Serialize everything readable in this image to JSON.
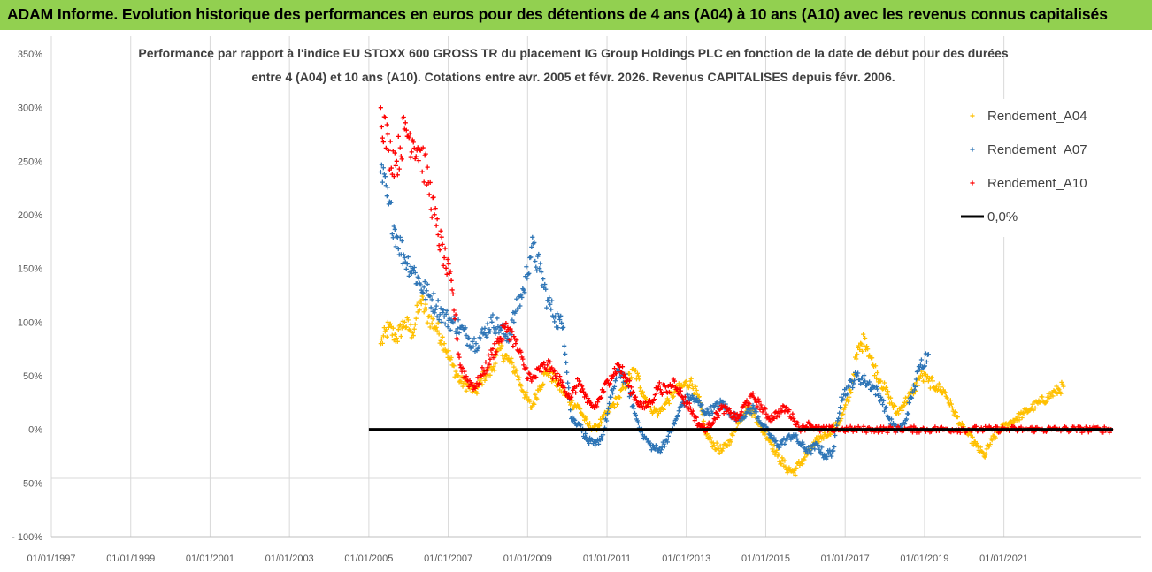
{
  "banner": {
    "text": "ADAM Informe. Evolution historique des performances en euros pour des détentions de 4 ans (A04) à 10 ans (A10) avec les revenus connus capitalisés"
  },
  "chart_data": {
    "type": "scatter",
    "title_lines": [
      "Performance par rapport à l'indice EU STOXX 600 GROSS TR  du placement IG Group Holdings PLC en fonction de la date de début pour des durées",
      "entre 4 (A04) et 10 ans (A10). Cotations entre avr. 2005 et févr. 2026. Revenus CAPITALISES depuis févr. 2006."
    ],
    "xlabel": "",
    "ylabel": "",
    "xlim": [
      1997.0,
      2023.75
    ],
    "ylim": [
      -100,
      350
    ],
    "y_ticks": [
      350,
      300,
      250,
      200,
      150,
      100,
      50,
      0,
      -50,
      -100
    ],
    "y_tick_labels": [
      "350%",
      "300%",
      "250%",
      "200%",
      "150%",
      "100%",
      "50%",
      "0%",
      "-50%",
      "- 100%"
    ],
    "x_ticks": [
      1997,
      1999,
      2001,
      2003,
      2005,
      2007,
      2009,
      2011,
      2013,
      2015,
      2017,
      2019,
      2021
    ],
    "x_tick_labels": [
      "01/01/1997",
      "01/01/1999",
      "01/01/2001",
      "01/01/2003",
      "01/01/2005",
      "01/01/2007",
      "01/01/2009",
      "01/01/2011",
      "01/01/2013",
      "01/01/2015",
      "01/01/2017",
      "01/01/2019",
      "01/01/2021"
    ],
    "series": [
      {
        "name": "Rendement_A04",
        "color": "#ffc000",
        "marker": "plus",
        "x": [
          2005.3,
          2005.5,
          2005.7,
          2005.9,
          2006.1,
          2006.3,
          2006.5,
          2006.7,
          2006.9,
          2007.1,
          2007.3,
          2007.5,
          2007.7,
          2007.9,
          2008.1,
          2008.3,
          2008.5,
          2008.7,
          2008.9,
          2009.1,
          2009.3,
          2009.5,
          2009.7,
          2009.9,
          2010.1,
          2010.3,
          2010.5,
          2010.7,
          2010.9,
          2011.1,
          2011.3,
          2011.5,
          2011.7,
          2011.9,
          2012.1,
          2012.3,
          2012.5,
          2012.7,
          2012.9,
          2013.1,
          2013.3,
          2013.5,
          2013.7,
          2013.9,
          2014.1,
          2014.3,
          2014.5,
          2014.7,
          2014.9,
          2015.1,
          2015.3,
          2015.5,
          2015.7,
          2015.9,
          2016.1,
          2016.3,
          2016.5,
          2016.7,
          2016.9,
          2017.1,
          2017.3,
          2017.5,
          2017.7,
          2017.9,
          2018.1,
          2018.3,
          2018.5,
          2018.7,
          2018.9,
          2019.1,
          2019.3,
          2019.5,
          2019.7,
          2019.9,
          2020.1,
          2020.3,
          2020.5,
          2020.7,
          2020.9,
          2021.1,
          2021.3,
          2021.5,
          2021.7,
          2021.9,
          2022.1,
          2022.3,
          2022.5
        ],
        "y": [
          80,
          95,
          85,
          100,
          90,
          120,
          105,
          95,
          80,
          60,
          45,
          40,
          35,
          50,
          55,
          75,
          65,
          55,
          35,
          20,
          40,
          55,
          45,
          35,
          25,
          20,
          5,
          0,
          10,
          20,
          30,
          45,
          55,
          35,
          20,
          15,
          25,
          35,
          40,
          45,
          30,
          -5,
          -15,
          -20,
          -10,
          5,
          20,
          15,
          0,
          -10,
          -25,
          -35,
          -40,
          -30,
          -20,
          -10,
          -5,
          0,
          10,
          30,
          70,
          85,
          60,
          45,
          30,
          15,
          25,
          35,
          50,
          45,
          40,
          35,
          20,
          5,
          -5,
          -15,
          -25,
          -10,
          0,
          5,
          10,
          15,
          20,
          25,
          30,
          35,
          40
        ]
      },
      {
        "name": "Rendement_A07",
        "color": "#2e75b6",
        "marker": "plus",
        "x": [
          2005.3,
          2005.5,
          2005.7,
          2005.9,
          2006.1,
          2006.3,
          2006.5,
          2006.7,
          2006.9,
          2007.1,
          2007.3,
          2007.5,
          2007.7,
          2007.9,
          2008.1,
          2008.3,
          2008.5,
          2008.7,
          2008.9,
          2009.1,
          2009.3,
          2009.5,
          2009.7,
          2009.9,
          2010.1,
          2010.3,
          2010.5,
          2010.7,
          2010.9,
          2011.1,
          2011.3,
          2011.5,
          2011.7,
          2011.9,
          2012.1,
          2012.3,
          2012.5,
          2012.7,
          2012.9,
          2013.1,
          2013.3,
          2013.5,
          2013.7,
          2013.9,
          2014.1,
          2014.3,
          2014.5,
          2014.7,
          2014.9,
          2015.1,
          2015.3,
          2015.5,
          2015.7,
          2015.9,
          2016.1,
          2016.3,
          2016.5,
          2016.7,
          2016.9,
          2017.1,
          2017.3,
          2017.5,
          2017.7,
          2017.9,
          2018.1,
          2018.3,
          2018.5,
          2018.7,
          2018.9,
          2019.1
        ],
        "y": [
          240,
          210,
          180,
          160,
          150,
          135,
          125,
          115,
          105,
          100,
          95,
          85,
          80,
          90,
          100,
          95,
          85,
          110,
          130,
          170,
          150,
          120,
          105,
          95,
          10,
          5,
          -10,
          -15,
          -5,
          30,
          55,
          45,
          15,
          -5,
          -15,
          -20,
          -10,
          5,
          25,
          30,
          25,
          15,
          20,
          25,
          15,
          10,
          15,
          20,
          5,
          -5,
          -15,
          -10,
          -5,
          -15,
          -20,
          -15,
          -25,
          -20,
          30,
          40,
          50,
          45,
          40,
          30,
          10,
          0,
          5,
          35,
          60,
          70
        ]
      },
      {
        "name": "Rendement_A10",
        "color": "#ff0000",
        "marker": "plus",
        "x": [
          2005.3,
          2005.5,
          2005.7,
          2005.9,
          2006.1,
          2006.3,
          2006.5,
          2006.7,
          2006.9,
          2007.1,
          2007.3,
          2007.5,
          2007.7,
          2007.9,
          2008.1,
          2008.3,
          2008.5,
          2008.7,
          2008.9,
          2009.1,
          2009.3,
          2009.5,
          2009.7,
          2009.9,
          2010.1,
          2010.3,
          2010.5,
          2010.7,
          2010.9,
          2011.1,
          2011.3,
          2011.5,
          2011.7,
          2011.9,
          2012.1,
          2012.3,
          2012.5,
          2012.7,
          2012.9,
          2013.1,
          2013.3,
          2013.5,
          2013.7,
          2013.9,
          2014.1,
          2014.3,
          2014.5,
          2014.7,
          2014.9,
          2015.1,
          2015.3,
          2015.5,
          2015.7,
          2015.9,
          2016.1,
          2016.3,
          2016.5,
          2016.8,
          2017.1,
          2017.4,
          2017.7,
          2018.0,
          2018.3,
          2018.6,
          2018.9,
          2019.2,
          2019.5,
          2019.8,
          2020.1,
          2020.4,
          2020.7,
          2021.0,
          2021.3,
          2021.6,
          2021.9,
          2022.2,
          2022.5,
          2022.8,
          2023.1,
          2023.4,
          2023.7
        ],
        "y": [
          300,
          260,
          250,
          280,
          270,
          260,
          230,
          190,
          160,
          130,
          60,
          45,
          40,
          55,
          70,
          85,
          95,
          80,
          60,
          45,
          55,
          60,
          50,
          40,
          30,
          45,
          25,
          20,
          35,
          50,
          60,
          45,
          30,
          20,
          25,
          40,
          35,
          45,
          30,
          20,
          5,
          0,
          10,
          20,
          15,
          10,
          25,
          30,
          20,
          10,
          15,
          20,
          10,
          0,
          5,
          0,
          0,
          0,
          0,
          0,
          0,
          0,
          0,
          0,
          0,
          0,
          0,
          0,
          0,
          0,
          0,
          0,
          0,
          0,
          0,
          0,
          0,
          0,
          0,
          0,
          0
        ]
      }
    ],
    "reference_line": {
      "name": "0,0%",
      "color": "#000000",
      "x": [
        2005.0,
        2023.75
      ],
      "y": [
        0,
        0
      ]
    },
    "legend": {
      "position": "top-right",
      "items": [
        {
          "label": "Rendement_A04",
          "color": "#ffc000",
          "marker": "+"
        },
        {
          "label": "Rendement_A07",
          "color": "#2e75b6",
          "marker": "+"
        },
        {
          "label": "Rendement_A10",
          "color": "#ff0000",
          "marker": "+"
        },
        {
          "label": "0,0%",
          "color": "#000000",
          "marker": "line"
        }
      ]
    },
    "grid": {
      "x": true,
      "y": false
    }
  }
}
